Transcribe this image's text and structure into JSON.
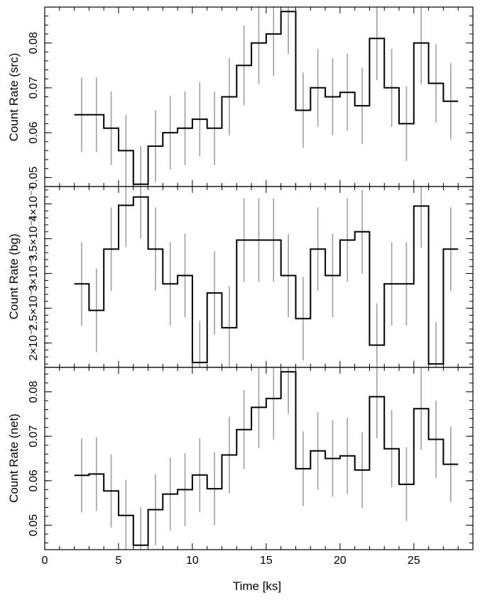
{
  "chart_data": [
    {
      "type": "line",
      "panel": "src",
      "ylabel": "Count Rate (src)",
      "xlabel": "",
      "xlim": [
        0,
        29
      ],
      "ylim": [
        0.048,
        0.088
      ],
      "yticks": [
        0.05,
        0.06,
        0.07,
        0.08
      ],
      "ytick_labels": [
        "0.05",
        "0.06",
        "0.07",
        "0.08"
      ],
      "bin_width": 1.0,
      "series": [
        {
          "x": [
            2.5,
            3.5,
            4.5,
            5.5,
            6.5,
            7.5,
            8.5,
            9.5,
            10.5,
            11.5,
            12.5,
            13.5,
            14.5,
            15.5,
            16.5,
            17.5,
            18.5,
            19.5,
            20.5,
            21.5,
            22.5,
            23.5,
            24.5,
            25.5,
            26.5,
            27.5
          ],
          "y": [
            0.064,
            0.064,
            0.061,
            0.056,
            0.0485,
            0.057,
            0.06,
            0.061,
            0.063,
            0.061,
            0.068,
            0.075,
            0.08,
            0.082,
            0.087,
            0.065,
            0.07,
            0.068,
            0.069,
            0.066,
            0.081,
            0.07,
            0.062,
            0.08,
            0.071,
            0.067
          ],
          "err": [
            0.0083,
            0.0083,
            0.0082,
            0.008,
            0.0085,
            0.008,
            0.0082,
            0.0082,
            0.0083,
            0.0082,
            0.0086,
            0.0089,
            0.0092,
            0.0093,
            0.0095,
            0.0084,
            0.0087,
            0.0086,
            0.0086,
            0.0085,
            0.0093,
            0.0087,
            0.0083,
            0.0092,
            0.0087,
            0.0085
          ]
        }
      ]
    },
    {
      "type": "line",
      "panel": "bg",
      "ylabel": "Count Rate (bg)",
      "xlabel": "",
      "xlim": [
        0,
        29
      ],
      "ylim": [
        0.00165,
        0.00425
      ],
      "yticks": [
        0.002,
        0.0025,
        0.003,
        0.0035,
        0.004
      ],
      "ytick_labels": [
        "2×10⁻³",
        "2.5×10⁻³",
        "3×10⁻³",
        "3.5×10⁻³",
        "4×10⁻³"
      ],
      "bin_width": 1.0,
      "series": [
        {
          "x": [
            2.5,
            3.5,
            4.5,
            5.5,
            6.5,
            7.5,
            8.5,
            9.5,
            10.5,
            11.5,
            12.5,
            13.5,
            14.5,
            15.5,
            16.5,
            17.5,
            18.5,
            19.5,
            20.5,
            21.5,
            22.5,
            23.5,
            24.5,
            25.5,
            26.5,
            27.5
          ],
          "y": [
            0.00285,
            0.00247,
            0.00335,
            0.00398,
            0.0041,
            0.00335,
            0.00285,
            0.00297,
            0.00172,
            0.00272,
            0.00222,
            0.00348,
            0.00348,
            0.00348,
            0.00297,
            0.00235,
            0.00335,
            0.00297,
            0.00348,
            0.0036,
            0.00197,
            0.00285,
            0.00285,
            0.00397,
            0.0017,
            0.00335
          ],
          "err": [
            0.0006,
            0.0006,
            0.0006,
            0.0006,
            0.0006,
            0.0006,
            0.0006,
            0.0006,
            0.0006,
            0.0006,
            0.0006,
            0.0006,
            0.0006,
            0.0006,
            0.0006,
            0.0006,
            0.0006,
            0.0006,
            0.0006,
            0.0006,
            0.0006,
            0.0006,
            0.0006,
            0.0006,
            0.0006,
            0.0006
          ]
        }
      ]
    },
    {
      "type": "line",
      "panel": "net",
      "ylabel": "Count Rate (net)",
      "xlabel": "Time [ks]",
      "xlim": [
        0,
        29
      ],
      "ylim": [
        0.0445,
        0.0855
      ],
      "yticks": [
        0.05,
        0.06,
        0.07,
        0.08
      ],
      "ytick_labels": [
        "0.05",
        "0.06",
        "0.07",
        "0.08"
      ],
      "xticks": [
        0,
        5,
        10,
        15,
        20,
        25
      ],
      "xtick_labels": [
        "0",
        "5",
        "10",
        "15",
        "20",
        "25"
      ],
      "bin_width": 1.0,
      "series": [
        {
          "x": [
            2.5,
            3.5,
            4.5,
            5.5,
            6.5,
            7.5,
            8.5,
            9.5,
            10.5,
            11.5,
            12.5,
            13.5,
            14.5,
            15.5,
            16.5,
            17.5,
            18.5,
            19.5,
            20.5,
            21.5,
            22.5,
            23.5,
            24.5,
            25.5,
            26.5,
            27.5
          ],
          "y": [
            0.0612,
            0.0615,
            0.0577,
            0.0522,
            0.0455,
            0.0535,
            0.057,
            0.058,
            0.0613,
            0.0582,
            0.0658,
            0.0715,
            0.0765,
            0.0785,
            0.0845,
            0.0627,
            0.0667,
            0.065,
            0.0656,
            0.0624,
            0.0789,
            0.0672,
            0.0592,
            0.0762,
            0.0693,
            0.0637
          ],
          "err": [
            0.0083,
            0.0083,
            0.0082,
            0.008,
            0.0085,
            0.008,
            0.0082,
            0.0082,
            0.0083,
            0.0082,
            0.0086,
            0.0089,
            0.0092,
            0.0093,
            0.0095,
            0.0084,
            0.0087,
            0.0086,
            0.0086,
            0.0085,
            0.0093,
            0.0087,
            0.0083,
            0.0092,
            0.0087,
            0.0085
          ]
        }
      ]
    }
  ],
  "colors": {
    "step": "#000000",
    "errorbar": "#a0a0a0",
    "frame": "#000000"
  }
}
